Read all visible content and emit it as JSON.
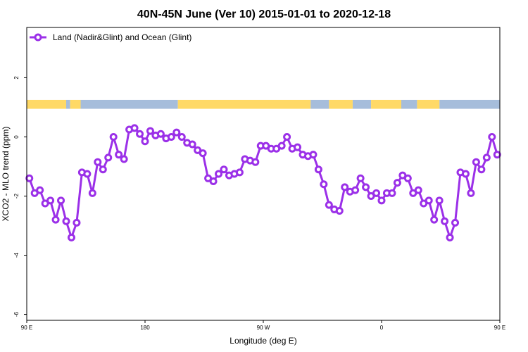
{
  "chart_data": {
    "type": "line",
    "title": "40N-45N June (Ver 10)   2015-01-01 to 2020-12-18",
    "xlabel": "Longitude (deg E)",
    "ylabel": "XCO2 - MLO trend (ppm)",
    "xlim": [
      90,
      450
    ],
    "ylim": [
      -6.2,
      3.7
    ],
    "x_ticks": [
      {
        "value": 90,
        "label": "90 E"
      },
      {
        "value": 180,
        "label": "180"
      },
      {
        "value": 270,
        "label": "90 W"
      },
      {
        "value": 360,
        "label": "0"
      },
      {
        "value": 450,
        "label": "90 E"
      },
      {
        "value": 540,
        "label": "180"
      }
    ],
    "y_ticks": [
      {
        "value": -6,
        "label": "-6"
      },
      {
        "value": -4,
        "label": "-4"
      },
      {
        "value": -2,
        "label": "-2"
      },
      {
        "value": 0,
        "label": "0"
      },
      {
        "value": 2,
        "label": "2"
      }
    ],
    "legend": {
      "position": "top-left"
    },
    "colors": {
      "series": "#9b30e8",
      "land": "#ffd966",
      "ocean": "#a6bddb"
    },
    "land_ocean_strip": {
      "y_range": [
        0.95,
        1.25
      ],
      "land": [
        [
          90,
          120
        ],
        [
          123,
          131
        ],
        [
          205,
          306
        ],
        [
          320,
          338
        ],
        [
          352,
          375
        ],
        [
          387,
          404
        ]
      ],
      "ocean": [
        [
          120,
          123
        ],
        [
          131,
          205
        ],
        [
          306,
          320
        ],
        [
          338,
          352
        ],
        [
          375,
          387
        ],
        [
          404,
          450
        ]
      ]
    },
    "series": [
      {
        "name": "Land (Nadir&Glint) and Ocean (Glint)",
        "x": [
          92,
          96,
          100,
          104,
          108,
          112,
          116,
          120,
          124,
          128,
          132,
          136,
          140,
          144,
          148,
          152,
          156,
          160,
          164,
          168,
          172,
          176,
          180,
          184,
          188,
          192,
          196,
          200,
          204,
          208,
          212,
          216,
          220,
          224,
          228,
          232,
          236,
          240,
          244,
          248,
          252,
          256,
          260,
          264,
          268,
          272,
          276,
          280,
          284,
          288,
          292,
          296,
          300,
          304,
          308,
          312,
          316,
          320,
          324,
          328,
          332,
          336,
          340,
          344,
          348,
          352,
          356,
          360,
          364,
          368,
          372,
          376,
          380,
          384,
          388,
          392,
          396,
          400,
          404,
          408,
          412,
          416,
          420,
          424,
          428,
          432,
          436,
          440,
          444,
          448
        ],
        "y": [
          -1.4,
          -1.9,
          -1.8,
          -2.25,
          -2.15,
          -2.8,
          -2.15,
          -2.85,
          -3.4,
          -2.9,
          -1.2,
          -1.25,
          -1.9,
          -0.85,
          -1.1,
          -0.7,
          0.0,
          -0.6,
          -0.75,
          0.25,
          0.3,
          0.1,
          -0.15,
          0.2,
          0.05,
          0.1,
          -0.05,
          0.0,
          0.15,
          0.0,
          -0.2,
          -0.25,
          -0.45,
          -0.55,
          -1.4,
          -1.5,
          -1.25,
          -1.1,
          -1.3,
          -1.25,
          -1.2,
          -0.75,
          -0.8,
          -0.85,
          -0.3,
          -0.3,
          -0.4,
          -0.4,
          -0.3,
          0.0,
          -0.4,
          -0.35,
          -0.6,
          -0.65,
          -0.6,
          -1.1,
          -1.6,
          -2.3,
          -2.45,
          -2.5,
          -1.7,
          -1.85,
          -1.8,
          -1.4,
          -1.7,
          -2.0,
          -1.9,
          -2.15,
          -1.9,
          -1.9,
          -1.55,
          -1.3,
          -1.4,
          -1.9,
          -1.8,
          -2.25,
          -2.15,
          -2.8,
          -2.15,
          -2.85,
          -3.4,
          -2.9,
          -1.2,
          -1.25,
          -1.9,
          -0.85,
          -1.1,
          -0.7,
          0.0,
          -0.6
        ]
      }
    ]
  }
}
